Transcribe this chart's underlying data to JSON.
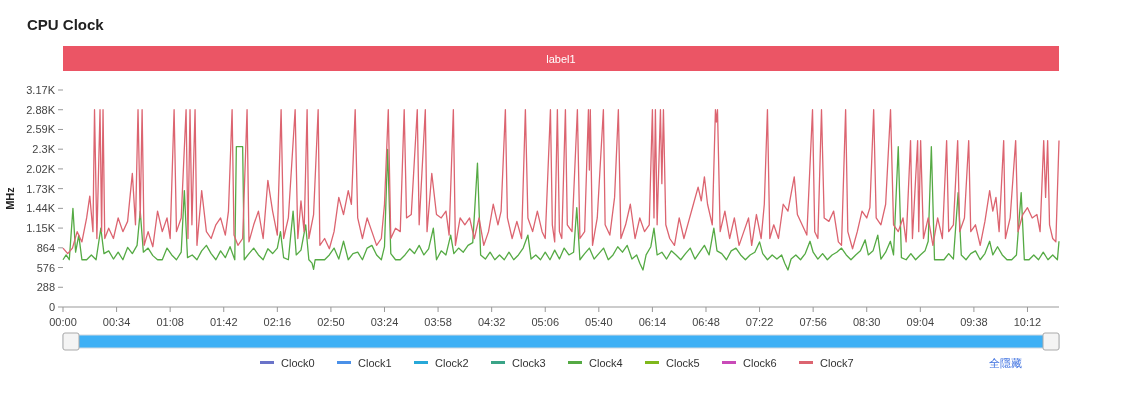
{
  "chart_data": {
    "type": "line",
    "title": "CPU Clock",
    "ylabel": "MHz",
    "annotations": [
      "label1",
      "全隱藏"
    ],
    "legend": "bottom",
    "xlim": [
      0,
      632
    ],
    "ylim": [
      0,
      3168
    ],
    "xticks": [
      {
        "value": 0,
        "label": "00:00"
      },
      {
        "value": 34,
        "label": "00:34"
      },
      {
        "value": 68,
        "label": "01:08"
      },
      {
        "value": 102,
        "label": "01:42"
      },
      {
        "value": 136,
        "label": "02:16"
      },
      {
        "value": 170,
        "label": "02:50"
      },
      {
        "value": 204,
        "label": "03:24"
      },
      {
        "value": 238,
        "label": "03:58"
      },
      {
        "value": 272,
        "label": "04:32"
      },
      {
        "value": 306,
        "label": "05:06"
      },
      {
        "value": 340,
        "label": "05:40"
      },
      {
        "value": 374,
        "label": "06:14"
      },
      {
        "value": 408,
        "label": "06:48"
      },
      {
        "value": 442,
        "label": "07:22"
      },
      {
        "value": 476,
        "label": "07:56"
      },
      {
        "value": 510,
        "label": "08:30"
      },
      {
        "value": 544,
        "label": "09:04"
      },
      {
        "value": 578,
        "label": "09:38"
      },
      {
        "value": 612,
        "label": "10:12"
      }
    ],
    "yticks": [
      0,
      288,
      576,
      864,
      {
        "value": 1152,
        "label": "1.15K"
      },
      {
        "value": 1440,
        "label": "1.44K"
      },
      {
        "value": 1728,
        "label": "1.73K"
      },
      {
        "value": 2016,
        "label": "2.02K"
      },
      {
        "value": 2304,
        "label": "2.3K"
      },
      {
        "value": 2592,
        "label": "2.59K"
      },
      {
        "value": 2880,
        "label": "2.88K"
      },
      {
        "value": 3168,
        "label": "3.17K"
      }
    ],
    "series": [
      {
        "name": "Clock0",
        "color": "#6a73c9"
      },
      {
        "name": "Clock1",
        "color": "#4a90e8"
      },
      {
        "name": "Clock2",
        "color": "#27a8d8"
      },
      {
        "name": "Clock3",
        "color": "#3aa487"
      },
      {
        "name": "Clock4",
        "color": "#55aa44",
        "x": [
          0,
          2,
          4,
          6.3,
          8,
          10,
          12,
          15,
          18,
          21,
          24,
          26,
          29,
          32,
          35,
          38,
          41,
          44,
          47,
          49,
          51,
          54,
          57,
          60,
          63,
          66,
          69,
          72,
          75,
          77,
          79,
          82,
          85,
          88,
          91,
          94,
          97,
          100,
          103,
          106,
          109,
          110,
          114,
          115,
          118,
          121,
          124,
          127,
          130,
          133,
          136,
          138,
          140,
          143,
          146,
          148,
          151,
          154,
          156,
          158,
          159,
          160,
          163,
          166,
          169,
          172,
          175,
          178,
          181,
          184,
          187,
          190,
          193,
          196,
          199,
          202,
          204,
          206,
          208,
          211,
          214,
          217,
          220,
          223,
          226,
          229,
          232,
          235,
          237,
          240,
          243,
          246,
          248,
          251,
          254,
          257,
          260,
          263,
          265,
          268,
          271,
          274,
          277,
          280,
          283,
          286,
          289,
          292,
          295,
          297,
          300,
          303,
          306,
          309,
          312,
          315,
          318,
          321,
          324,
          326,
          328,
          331,
          334,
          337,
          340,
          343,
          346,
          349,
          352,
          355,
          358,
          361,
          364,
          366,
          368,
          370,
          373,
          375,
          377,
          380,
          383,
          386,
          389,
          392,
          395,
          398,
          401,
          404,
          407,
          410,
          413,
          415,
          418,
          421,
          424,
          427,
          430,
          433,
          436,
          439,
          442,
          444,
          447,
          450,
          453,
          456,
          458,
          460,
          462,
          465,
          468,
          471,
          474,
          476,
          479,
          482,
          485,
          488,
          491,
          494,
          497,
          500,
          503,
          506,
          509,
          511,
          514,
          517,
          519,
          522,
          525,
          527,
          530,
          532,
          535,
          538,
          541,
          544,
          547,
          549,
          551,
          553,
          556,
          559,
          562,
          565,
          568,
          570,
          573,
          576,
          579,
          582,
          585,
          588,
          590,
          593,
          596,
          599,
          602,
          605,
          608,
          610,
          613,
          616,
          619,
          622,
          625,
          628,
          631,
          632
        ],
        "values": [
          690,
          760,
          690,
          1440,
          800,
          1050,
          690,
          690,
          760,
          690,
          1150,
          780,
          820,
          700,
          800,
          690,
          870,
          780,
          900,
          1400,
          800,
          860,
          750,
          690,
          690,
          860,
          760,
          690,
          800,
          1700,
          720,
          760,
          690,
          820,
          900,
          780,
          690,
          820,
          720,
          880,
          690,
          2340,
          2340,
          690,
          780,
          860,
          760,
          690,
          850,
          780,
          860,
          1100,
          720,
          690,
          1400,
          760,
          830,
          1200,
          690,
          640,
          550,
          690,
          690,
          690,
          760,
          860,
          700,
          960,
          690,
          780,
          800,
          690,
          860,
          900,
          760,
          690,
          880,
          2300,
          780,
          690,
          690,
          760,
          850,
          780,
          900,
          760,
          850,
          1150,
          690,
          820,
          760,
          1050,
          780,
          860,
          800,
          900,
          940,
          2100,
          760,
          700,
          800,
          690,
          760,
          690,
          800,
          690,
          760,
          860,
          1050,
          700,
          760,
          690,
          800,
          690,
          830,
          700,
          860,
          760,
          800,
          1450,
          690,
          780,
          860,
          700,
          780,
          860,
          690,
          760,
          880,
          800,
          900,
          700,
          760,
          640,
          540,
          760,
          880,
          1150,
          760,
          800,
          700,
          820,
          760,
          690,
          780,
          860,
          700,
          800,
          900,
          760,
          1150,
          820,
          780,
          690,
          820,
          860,
          760,
          690,
          760,
          800,
          950,
          780,
          690,
          760,
          700,
          760,
          640,
          540,
          700,
          760,
          690,
          780,
          960,
          800,
          700,
          780,
          690,
          760,
          800,
          860,
          760,
          690,
          760,
          820,
          980,
          760,
          820,
          1050,
          700,
          800,
          960,
          760,
          2340,
          720,
          690,
          780,
          690,
          760,
          820,
          960,
          2340,
          690,
          690,
          690,
          780,
          700,
          1670,
          760,
          690,
          780,
          820,
          690,
          780,
          960,
          760,
          880,
          760,
          690,
          690,
          760,
          1670,
          690,
          690,
          760,
          690,
          800,
          690,
          760,
          690,
          960
        ]
      },
      {
        "name": "Clock5",
        "color": "#7fb81c"
      },
      {
        "name": "Clock6",
        "color": "#c94ab8"
      },
      {
        "name": "Clock7",
        "color": "#dc6470",
        "x": [
          0,
          3,
          6,
          9,
          12,
          15,
          17,
          19,
          20,
          21.5,
          23.5,
          24.5,
          25.4,
          26.5,
          29,
          32,
          35,
          38,
          41,
          44,
          46,
          47.6,
          49,
          50.2,
          51.5,
          54,
          57,
          60,
          63,
          66,
          68,
          70.5,
          72,
          75,
          78.1,
          79.3,
          80.6,
          81.8,
          83.8,
          85,
          88,
          91,
          94,
          97,
          100,
          103,
          105,
          107.3,
          108.5,
          111,
          114,
          116.8,
          118,
          121,
          124,
          127,
          130,
          133,
          136,
          138.4,
          140,
          143,
          147.3,
          149,
          151,
          153,
          154.9,
          156,
          159,
          161.9,
          163,
          166,
          169,
          172,
          175,
          178,
          181,
          183,
          185.4,
          187,
          190,
          193,
          196,
          199,
          202,
          204,
          206.4,
          208,
          211,
          214,
          216.5,
          218,
          221,
          224.8,
          226,
          229.9,
          231,
          234,
          237,
          240,
          243,
          245,
          247.7,
          249,
          252,
          255,
          258,
          261,
          264,
          267,
          270,
          273,
          276,
          278,
          280.7,
          282,
          285,
          288,
          291,
          293.4,
          295,
          298,
          301,
          304,
          306,
          309.3,
          310.5,
          312,
          313.7,
          315,
          316.5,
          318.8,
          320,
          323,
          326.4,
          328,
          331,
          333.4,
          334,
          334.6,
          336,
          339,
          342.9,
          344,
          347,
          350,
          352.4,
          354,
          357,
          360,
          363,
          366,
          369,
          372,
          374,
          375,
          375.9,
          377,
          379.1,
          380,
          381,
          382.5,
          385,
          388,
          391,
          394,
          397,
          400,
          403,
          405,
          407,
          409,
          412,
          414,
          414.6,
          415.3,
          417,
          420,
          423,
          426,
          429,
          432,
          435,
          437,
          440,
          443,
          445,
          447,
          448.5,
          451,
          454,
          457,
          460,
          462,
          464,
          466,
          469,
          472,
          475.6,
          477,
          479,
          481.3,
          483,
          486,
          489,
          492,
          494,
          496.6,
          498,
          501,
          504,
          507,
          510,
          512,
          514.4,
          516,
          519,
          522,
          525.1,
          527,
          530,
          533,
          535,
          537.8,
          539,
          542.3,
          543,
          544.2,
          546,
          549,
          552,
          555,
          558,
          560.7,
          562,
          565,
          567.7,
          569,
          572,
          574.7,
          576,
          579,
          582,
          585,
          588,
          590,
          592,
          594,
          596.9,
          598,
          601,
          604.5,
          606,
          609,
          612,
          615,
          618,
          620,
          622.3,
          623.5,
          624.8,
          626,
          628,
          630,
          632
        ],
        "values": [
          860,
          780,
          860,
          1100,
          950,
          1300,
          1620,
          1100,
          2880,
          1000,
          2880,
          1100,
          2880,
          1000,
          1150,
          1000,
          1300,
          1100,
          1250,
          1950,
          1200,
          2880,
          1300,
          2880,
          900,
          1100,
          880,
          1400,
          1100,
          1300,
          1000,
          2880,
          1100,
          1300,
          2880,
          1000,
          2880,
          1200,
          2880,
          900,
          1700,
          1100,
          1000,
          1200,
          1300,
          1050,
          1400,
          2880,
          1050,
          900,
          1000,
          2880,
          950,
          1200,
          1400,
          1000,
          1850,
          1400,
          1050,
          2880,
          1000,
          1300,
          2880,
          1000,
          1550,
          1100,
          2880,
          1000,
          1350,
          2880,
          900,
          1000,
          850,
          1100,
          1600,
          1350,
          1700,
          1500,
          2880,
          1300,
          1000,
          1300,
          1100,
          900,
          1000,
          1500,
          2880,
          1000,
          1150,
          1100,
          2880,
          1300,
          1350,
          2880,
          1200,
          2880,
          1100,
          1950,
          1350,
          1300,
          1400,
          1050,
          2880,
          900,
          1300,
          1200,
          1300,
          1000,
          1300,
          900,
          1100,
          1500,
          1200,
          1400,
          2880,
          1300,
          1000,
          1250,
          1000,
          2880,
          1300,
          1100,
          1400,
          1100,
          1000,
          2880,
          1200,
          950,
          2880,
          1100,
          1000,
          2880,
          1200,
          1100,
          2880,
          1000,
          1100,
          2880,
          2000,
          2880,
          900,
          1300,
          2880,
          1200,
          1050,
          1600,
          2880,
          1000,
          1200,
          1500,
          1000,
          1300,
          1100,
          1200,
          2880,
          1300,
          2880,
          1200,
          2880,
          1800,
          2880,
          1200,
          1000,
          900,
          1300,
          1000,
          1250,
          1500,
          1750,
          1550,
          1900,
          1500,
          1200,
          2880,
          2700,
          2880,
          1100,
          1400,
          1000,
          1300,
          900,
          1100,
          1300,
          900,
          1350,
          1000,
          1500,
          2880,
          1000,
          1200,
          1000,
          1500,
          1400,
          1650,
          1900,
          1350,
          1200,
          1050,
          2880,
          1100,
          1000,
          2880,
          1300,
          1250,
          1400,
          950,
          900,
          2880,
          1100,
          850,
          1100,
          1400,
          1300,
          1450,
          2880,
          1300,
          1200,
          1500,
          2880,
          1200,
          1100,
          1300,
          950,
          2430,
          1000,
          2430,
          1100,
          2430,
          1000,
          1300,
          900,
          1300,
          1000,
          2430,
          1100,
          1200,
          2430,
          1100,
          1300,
          2430,
          1100,
          1200,
          900,
          1250,
          1700,
          1400,
          1600,
          1100,
          2430,
          1000,
          1300,
          2430,
          1100,
          1350,
          1450,
          1300,
          1350,
          1100,
          2430,
          1600,
          2430,
          1200,
          1000,
          950,
          2430
        ]
      }
    ]
  }
}
